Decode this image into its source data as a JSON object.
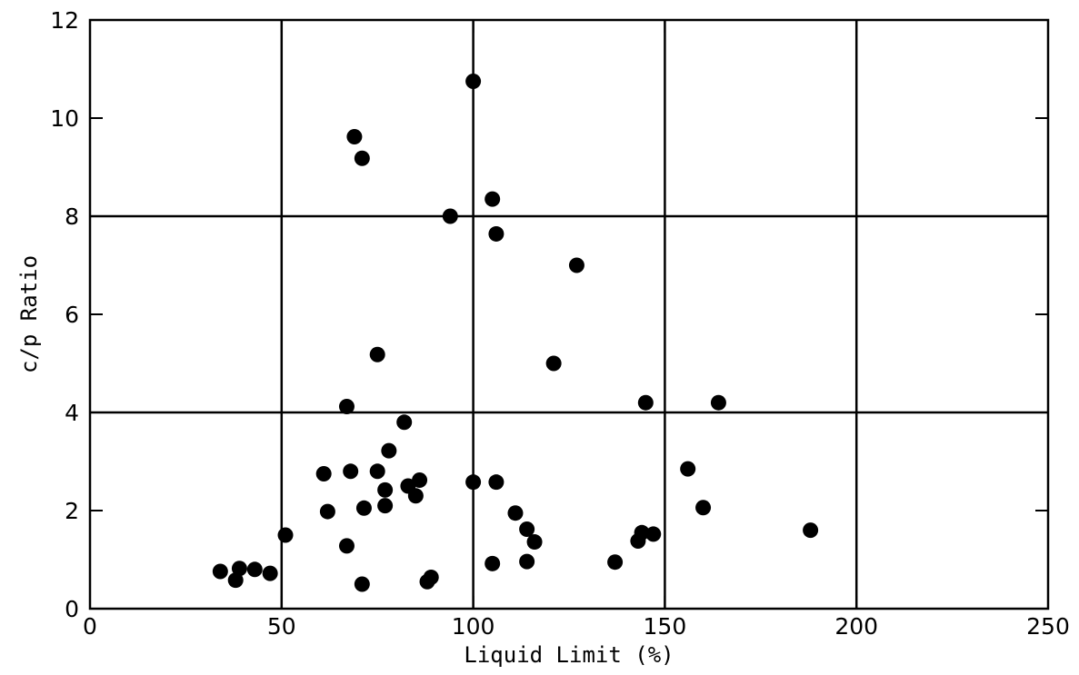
{
  "chart_data": {
    "type": "scatter",
    "title": "",
    "xlabel": "Liquid Limit (%)",
    "ylabel": "c/p Ratio",
    "xlim": [
      0,
      250
    ],
    "ylim": [
      0,
      12
    ],
    "xticks": [
      0,
      50,
      100,
      150,
      200,
      250
    ],
    "yticks": [
      0,
      2,
      4,
      6,
      8,
      10,
      12
    ],
    "xtick_labels": [
      "0",
      "50",
      "100",
      "150",
      "200",
      "250"
    ],
    "ytick_labels": [
      "0",
      "2",
      "4",
      "6",
      "8",
      "10",
      "12"
    ],
    "gridlines_x": [
      50,
      100,
      150,
      200
    ],
    "gridlines_y": [
      4,
      8
    ],
    "marker_color": "#000000",
    "points": [
      {
        "x": 34,
        "y": 0.76
      },
      {
        "x": 38,
        "y": 0.58
      },
      {
        "x": 39,
        "y": 0.82
      },
      {
        "x": 43,
        "y": 0.8
      },
      {
        "x": 47,
        "y": 0.72
      },
      {
        "x": 51,
        "y": 1.5
      },
      {
        "x": 61,
        "y": 2.75
      },
      {
        "x": 62,
        "y": 1.98
      },
      {
        "x": 67,
        "y": 1.28
      },
      {
        "x": 67,
        "y": 4.12
      },
      {
        "x": 68,
        "y": 2.8
      },
      {
        "x": 69,
        "y": 9.62
      },
      {
        "x": 71,
        "y": 9.18
      },
      {
        "x": 71,
        "y": 0.5
      },
      {
        "x": 71.5,
        "y": 2.05
      },
      {
        "x": 75,
        "y": 2.8
      },
      {
        "x": 75,
        "y": 5.18
      },
      {
        "x": 77,
        "y": 2.42
      },
      {
        "x": 77,
        "y": 2.1
      },
      {
        "x": 78,
        "y": 3.22
      },
      {
        "x": 82,
        "y": 3.8
      },
      {
        "x": 83,
        "y": 2.5
      },
      {
        "x": 85,
        "y": 2.3
      },
      {
        "x": 86,
        "y": 2.62
      },
      {
        "x": 88,
        "y": 0.55
      },
      {
        "x": 89,
        "y": 0.64
      },
      {
        "x": 94,
        "y": 8.0
      },
      {
        "x": 100,
        "y": 2.58
      },
      {
        "x": 100,
        "y": 10.75
      },
      {
        "x": 105,
        "y": 8.35
      },
      {
        "x": 105,
        "y": 0.92
      },
      {
        "x": 106,
        "y": 7.64
      },
      {
        "x": 106,
        "y": 2.58
      },
      {
        "x": 111,
        "y": 1.95
      },
      {
        "x": 114,
        "y": 1.62
      },
      {
        "x": 114,
        "y": 0.96
      },
      {
        "x": 116,
        "y": 1.36
      },
      {
        "x": 121,
        "y": 5.0
      },
      {
        "x": 127,
        "y": 7.0
      },
      {
        "x": 137,
        "y": 0.95
      },
      {
        "x": 143,
        "y": 1.38
      },
      {
        "x": 144,
        "y": 1.55
      },
      {
        "x": 145,
        "y": 4.2
      },
      {
        "x": 147,
        "y": 1.52
      },
      {
        "x": 156,
        "y": 2.85
      },
      {
        "x": 160,
        "y": 2.06
      },
      {
        "x": 164,
        "y": 4.2
      },
      {
        "x": 188,
        "y": 1.6
      }
    ]
  }
}
